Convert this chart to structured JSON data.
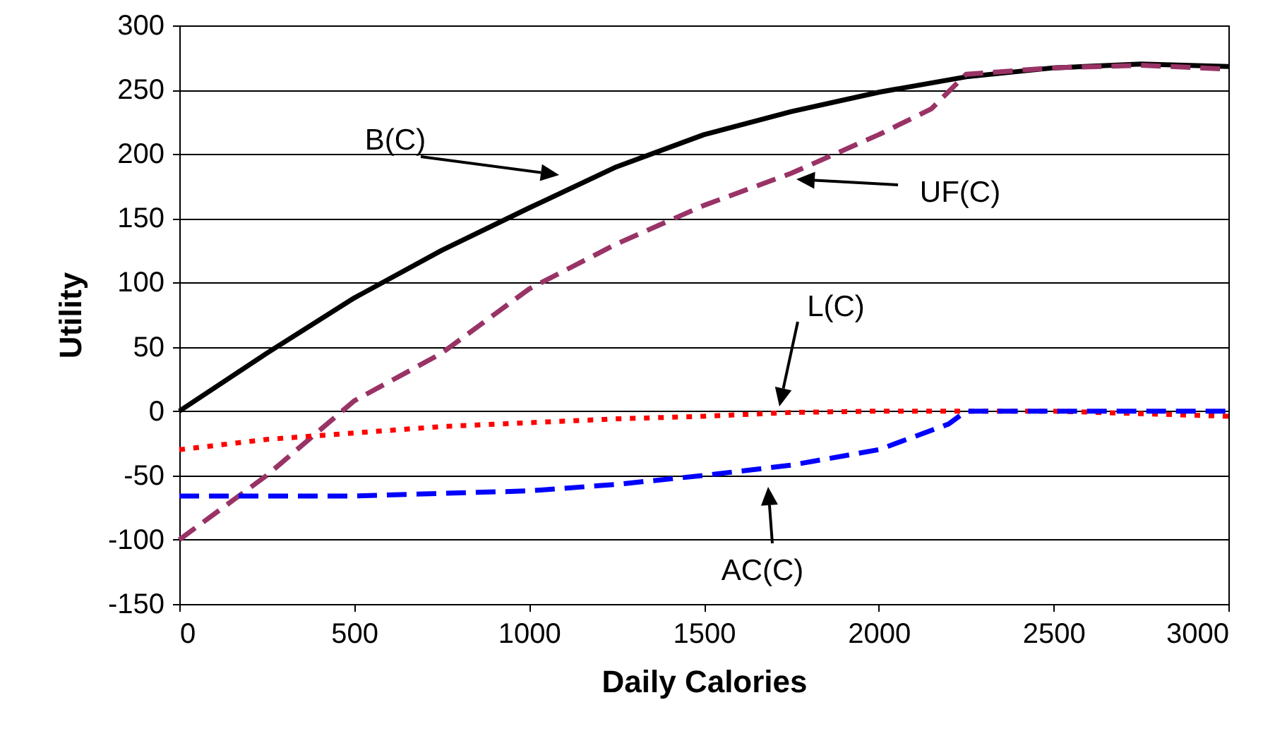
{
  "chart_data": {
    "type": "line",
    "xlabel": "Daily Calories",
    "ylabel": "Utility",
    "xlim": [
      0,
      3000
    ],
    "xticks": [
      0,
      500,
      1000,
      1500,
      2000,
      2500,
      3000
    ],
    "ylim": [
      -150,
      300
    ],
    "yticks": [
      -150,
      -100,
      -50,
      0,
      50,
      100,
      150,
      200,
      250,
      300
    ],
    "grid": "y",
    "annotations": [
      "B(C)",
      "UF(C)",
      "L(C)",
      "AC(C)"
    ],
    "series": [
      {
        "color": "#000000",
        "line_style": "solid",
        "x": [
          0,
          250,
          500,
          750,
          1000,
          1250,
          1500,
          1750,
          2000,
          2250,
          2500,
          2750,
          3000
        ],
        "values": [
          0,
          45,
          88,
          125,
          158,
          190,
          215,
          233,
          248,
          260,
          267,
          270,
          268
        ]
      },
      {
        "color": "#993366",
        "line_style": "dashed",
        "x": [
          0,
          250,
          500,
          750,
          1000,
          1250,
          1500,
          1750,
          2000,
          2150,
          2250,
          2500,
          2750,
          3000
        ],
        "values": [
          -100,
          -50,
          8,
          45,
          95,
          130,
          160,
          185,
          215,
          235,
          262,
          267,
          269,
          266
        ]
      },
      {
        "color": "#ff0000",
        "line_style": "dotted",
        "x": [
          0,
          250,
          500,
          750,
          1000,
          1250,
          1500,
          1750,
          2000,
          2250,
          2500,
          2750,
          3000
        ],
        "values": [
          -30,
          -22,
          -17,
          -12,
          -9,
          -6,
          -4,
          -1,
          0,
          0,
          0,
          -2,
          -4
        ]
      },
      {
        "color": "#0000ff",
        "line_style": "dashed",
        "x": [
          0,
          250,
          500,
          750,
          1000,
          1250,
          1500,
          1750,
          2000,
          2100,
          2200,
          2250,
          2500,
          2750,
          3000
        ],
        "values": [
          -66,
          -66,
          -66,
          -64,
          -62,
          -57,
          -50,
          -42,
          -30,
          -20,
          -10,
          0,
          0,
          0,
          0
        ]
      }
    ]
  }
}
